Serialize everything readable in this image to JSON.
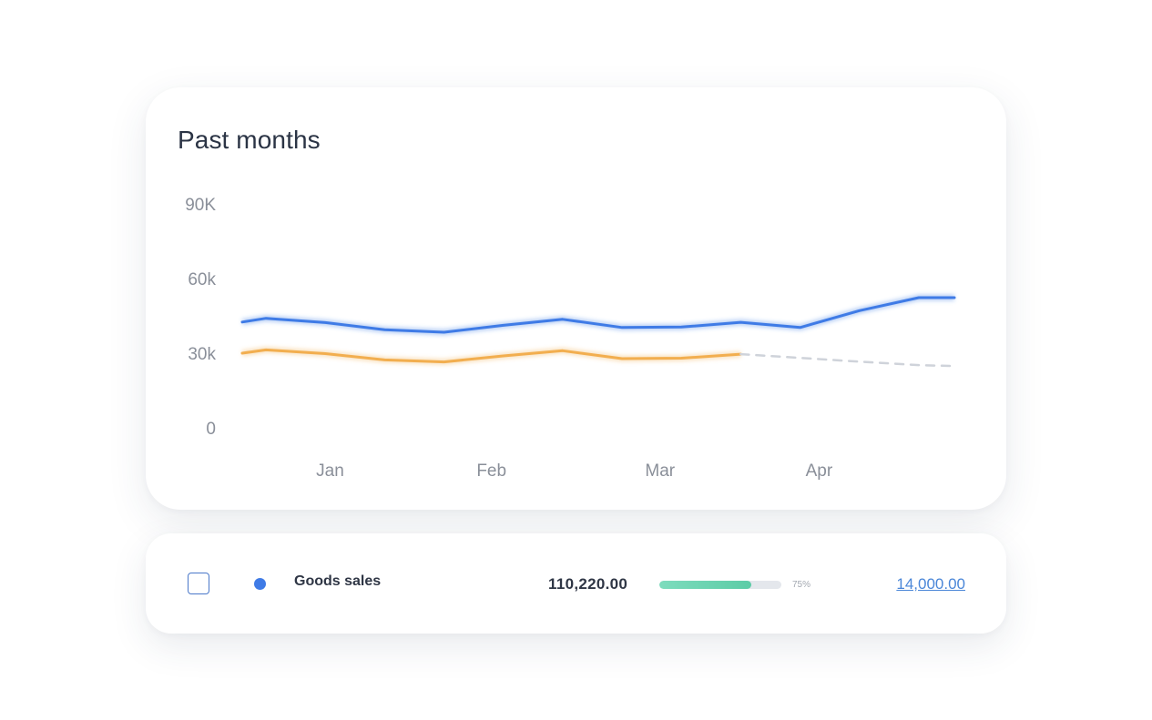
{
  "chart_data": {
    "type": "line",
    "title": "Past months",
    "xlabel": "",
    "ylabel": "",
    "y_ticks": [
      "0",
      "30k",
      "60k",
      "90K"
    ],
    "y_tick_values": [
      0,
      30000,
      60000,
      90000
    ],
    "ylim": [
      0,
      90000
    ],
    "x_ticks": [
      "Jan",
      "Feb",
      "Mar",
      "Apr"
    ],
    "x_tick_positions": [
      3.7,
      10.5,
      17.6,
      24.3
    ],
    "xlim": [
      0,
      30
    ],
    "grid": false,
    "series": [
      {
        "color": "#3f7be6",
        "style": "solid",
        "x": [
          0,
          1,
          3.5,
          6,
          8.5,
          11,
          13.5,
          16,
          18.5,
          21,
          23.5,
          26,
          28.5,
          30
        ],
        "y": [
          42500,
          44000,
          42300,
          39400,
          38400,
          41200,
          43600,
          40300,
          40500,
          42400,
          40300,
          47100,
          52300,
          52300
        ]
      },
      {
        "color": "#f2ae4f",
        "style": "solid",
        "x": [
          0,
          1,
          3.5,
          6,
          8.5,
          11,
          13.5,
          16,
          18.5,
          21
        ],
        "y": [
          30000,
          31300,
          29800,
          27300,
          26500,
          28900,
          31000,
          27800,
          28000,
          29600
        ]
      },
      {
        "color": "#cfd3da",
        "style": "dashed",
        "x": [
          21,
          23.5,
          26,
          28.5,
          30
        ],
        "y": [
          29600,
          28100,
          26600,
          25200,
          24800
        ]
      }
    ]
  },
  "colors": {
    "accent_blue": "#3f7be6",
    "accent_orange": "#f2ae4f",
    "progress_green": "#5ccca6",
    "link_blue": "#4a86d8"
  },
  "row": {
    "name": "Goods sales",
    "total": "110,220.00",
    "progress": 0.75,
    "progress_label": "75%",
    "amount": "14,000.00"
  }
}
